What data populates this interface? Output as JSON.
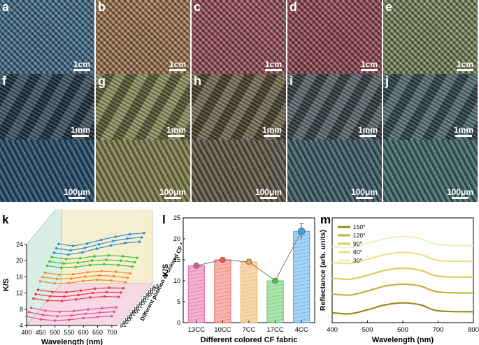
{
  "panels_top": [
    {
      "label": "a",
      "scale": "1cm",
      "bg": "#4f7fa0"
    },
    {
      "label": "b",
      "scale": "1cm",
      "bg": "#b98a62"
    },
    {
      "label": "c",
      "scale": "1cm",
      "bg": "#b0606a"
    },
    {
      "label": "d",
      "scale": "1cm",
      "bg": "#a9565f"
    },
    {
      "label": "e",
      "scale": "1cm",
      "bg": "#8c9a6e"
    }
  ],
  "panels_mid": [
    {
      "label": "f",
      "scale": "1mm",
      "bg": "#2f4a5c"
    },
    {
      "label": "g",
      "scale": "1mm",
      "bg": "#8a8a55"
    },
    {
      "label": "h",
      "scale": "1mm",
      "bg": "#6e6446"
    },
    {
      "label": "i",
      "scale": "1mm",
      "bg": "#4f5f66"
    },
    {
      "label": "j",
      "scale": "1mm",
      "bg": "#47656c"
    }
  ],
  "panels_bot": [
    {
      "scale": "100μm",
      "bg": "#244a66"
    },
    {
      "scale": "100μm",
      "bg": "#7d7a4a"
    },
    {
      "scale": "100μm",
      "bg": "#5f5648"
    },
    {
      "scale": "100μm",
      "bg": "#3b5a66"
    },
    {
      "scale": "100μm",
      "bg": "#3f6466"
    }
  ],
  "panel_k": {
    "label": "k",
    "ylabel": "K/S",
    "xlabel": "Wavelength (nm)",
    "yticks": [
      "4",
      "8",
      "12",
      "16",
      "20",
      "24"
    ],
    "xticks": [
      "400",
      "450",
      "500",
      "550",
      "600",
      "650",
      "700"
    ],
    "depth_label": "Different position of colored CF fabric",
    "positions": [
      "p1",
      "p2",
      "p3",
      "p1",
      "p2",
      "p3",
      "p1",
      "p2",
      "p3",
      "p1",
      "p2",
      "p3",
      "p1",
      "p2",
      "p3"
    ]
  },
  "chart_data": [
    {
      "type": "line",
      "title": "",
      "xlabel": "Wavelength (nm)",
      "ylabel": "K/S",
      "x": [
        400,
        450,
        500,
        550,
        600,
        650,
        700
      ],
      "xlim": [
        400,
        720
      ],
      "ylim": [
        4,
        24
      ],
      "series": [
        {
          "values": [
            6.2,
            5.5,
            5.2,
            5.4,
            5.8,
            6.1,
            6.3
          ],
          "color": "#e0559c"
        },
        {
          "values": [
            6.6,
            5.9,
            5.6,
            5.8,
            6.2,
            6.5,
            6.7
          ],
          "color": "#e0559c"
        },
        {
          "values": [
            7.0,
            6.3,
            6.0,
            6.2,
            6.6,
            6.9,
            7.1
          ],
          "color": "#e0559c"
        },
        {
          "values": [
            8.6,
            8.1,
            8.0,
            8.4,
            8.9,
            9.1,
            9.0
          ],
          "color": "#ef3a49"
        },
        {
          "values": [
            9.0,
            8.5,
            8.4,
            8.8,
            9.3,
            9.5,
            9.4
          ],
          "color": "#ef3a49"
        },
        {
          "values": [
            9.4,
            8.9,
            8.8,
            9.2,
            9.7,
            9.9,
            9.8
          ],
          "color": "#ef3a49"
        },
        {
          "values": [
            10.8,
            10.3,
            10.4,
            10.9,
            11.2,
            11.0,
            10.6
          ],
          "color": "#f08a2c"
        },
        {
          "values": [
            11.2,
            10.7,
            10.8,
            11.3,
            11.6,
            11.4,
            11.0
          ],
          "color": "#f08a2c"
        },
        {
          "values": [
            11.6,
            11.1,
            11.2,
            11.7,
            12.0,
            11.8,
            11.4
          ],
          "color": "#f08a2c"
        },
        {
          "values": [
            12.6,
            12.1,
            12.3,
            12.8,
            13.0,
            12.8,
            12.4
          ],
          "color": "#3fbf3f"
        },
        {
          "values": [
            13.0,
            12.5,
            12.7,
            13.2,
            13.4,
            13.2,
            12.8
          ],
          "color": "#3fbf3f"
        },
        {
          "values": [
            13.4,
            12.9,
            13.1,
            13.6,
            13.8,
            13.6,
            13.2
          ],
          "color": "#3fbf3f"
        },
        {
          "values": [
            13.8,
            13.3,
            13.9,
            14.8,
            15.6,
            16.2,
            16.5
          ],
          "color": "#2f8fd6"
        },
        {
          "values": [
            14.2,
            13.7,
            14.3,
            15.2,
            16.0,
            16.6,
            16.9
          ],
          "color": "#2f8fd6"
        },
        {
          "values": [
            14.6,
            14.1,
            14.7,
            15.6,
            16.4,
            17.0,
            17.3
          ],
          "color": "#2f8fd6"
        }
      ]
    },
    {
      "type": "bar",
      "title": "",
      "label": "l",
      "xlabel": "Different colored CF fabric",
      "ylabel": "K/S",
      "categories": [
        "13CC",
        "10CC",
        "7CC",
        "17CC",
        "4CC"
      ],
      "values": [
        13.6,
        15.0,
        14.5,
        10.0,
        21.8
      ],
      "errors": [
        0.5,
        0.4,
        0.6,
        0.5,
        1.8
      ],
      "colors": [
        "#e0559c",
        "#ef5a4a",
        "#f0a54a",
        "#4cbf4c",
        "#3f9fe0"
      ],
      "yticks": [
        0,
        5,
        10,
        15,
        20,
        25
      ],
      "ylim": [
        0,
        25
      ]
    },
    {
      "type": "line",
      "title": "",
      "label": "m",
      "xlabel": "Wavelength (nm)",
      "ylabel": "Reflectance (arb. units)",
      "xticks": [
        400,
        500,
        600,
        700,
        800
      ],
      "xlim": [
        400,
        800
      ],
      "legend_position": "top-left",
      "series": [
        {
          "name": "150°",
          "color": "#9a8a1a",
          "values": [
            0.8,
            0.75,
            0.95,
            1.2,
            1.3,
            1.2,
            0.9,
            0.85
          ]
        },
        {
          "name": "120°",
          "color": "#c2b236",
          "values": [
            1.75,
            1.7,
            1.9,
            2.15,
            2.25,
            2.15,
            1.85,
            1.8
          ]
        },
        {
          "name": "90°",
          "color": "#dccd5a",
          "values": [
            2.55,
            2.5,
            2.7,
            2.95,
            3.05,
            2.95,
            2.65,
            2.6
          ]
        },
        {
          "name": "60°",
          "color": "#ebe08a",
          "values": [
            3.35,
            3.3,
            3.5,
            3.75,
            3.85,
            3.75,
            3.45,
            3.4
          ]
        },
        {
          "name": "30°",
          "color": "#f5efbd",
          "values": [
            4.15,
            4.1,
            4.3,
            4.55,
            4.65,
            4.55,
            4.25,
            4.2
          ]
        }
      ],
      "x": [
        400,
        450,
        500,
        550,
        600,
        650,
        700,
        800
      ]
    }
  ]
}
